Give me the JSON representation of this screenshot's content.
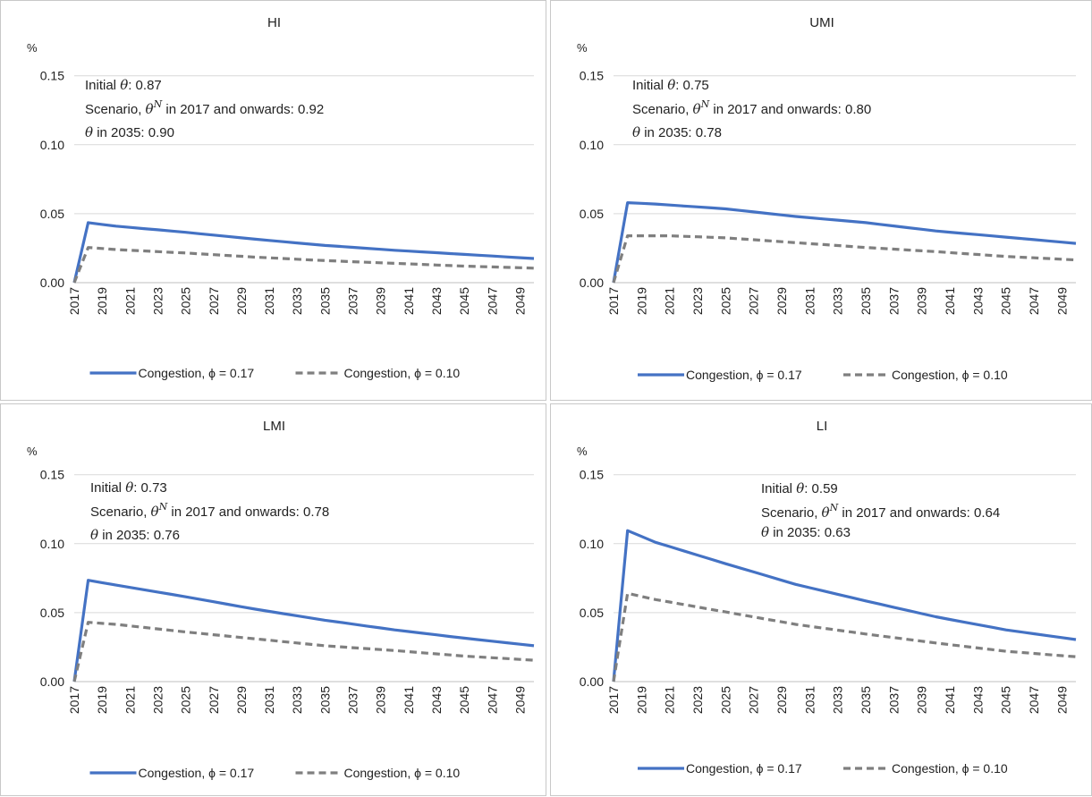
{
  "colors": {
    "series1": "#4472c4",
    "series2": "#7f7f7f",
    "grid": "#d9d9d9",
    "axis": "#bfbfbf"
  },
  "chart_data": [
    {
      "type": "line",
      "title": "HI",
      "unit": "%",
      "ylim": [
        0,
        0.15
      ],
      "yticks": [
        "0.00",
        "0.05",
        "0.10",
        "0.15"
      ],
      "x_start": 2017,
      "x_end": 2050,
      "xticks": [
        "2017",
        "2019",
        "2021",
        "2023",
        "2025",
        "2027",
        "2029",
        "2031",
        "2033",
        "2035",
        "2037",
        "2039",
        "2041",
        "2043",
        "2045",
        "2047",
        "2049"
      ],
      "annotation": {
        "line1_prefix": "Initial ",
        "line1_sym": "θ",
        "line1_value": ": 0.87",
        "line2_prefix": "Scenario, ",
        "line2_sym": "θ",
        "line2_sup": "N",
        "line2_rest": " in 2017 and onwards: 0.92",
        "line3_sym": "θ",
        "line3_rest": " in 2035: 0.90"
      },
      "series": [
        {
          "name": "Congestion, ϕ = 0.17",
          "anchors": [
            [
              2017,
              0
            ],
            [
              2018,
              0.0435
            ],
            [
              2020,
              0.041
            ],
            [
              2025,
              0.0365
            ],
            [
              2030,
              0.0315
            ],
            [
              2035,
              0.027
            ],
            [
              2040,
              0.0235
            ],
            [
              2045,
              0.0205
            ],
            [
              2050,
              0.0175
            ]
          ]
        },
        {
          "name": "Congestion, ϕ = 0.10",
          "anchors": [
            [
              2017,
              0
            ],
            [
              2018,
              0.0255
            ],
            [
              2020,
              0.024
            ],
            [
              2025,
              0.0215
            ],
            [
              2030,
              0.0185
            ],
            [
              2035,
              0.016
            ],
            [
              2040,
              0.014
            ],
            [
              2045,
              0.012
            ],
            [
              2050,
              0.0105
            ]
          ]
        }
      ]
    },
    {
      "type": "line",
      "title": "UMI",
      "unit": "%",
      "ylim": [
        0,
        0.15
      ],
      "yticks": [
        "0.00",
        "0.05",
        "0.10",
        "0.15"
      ],
      "x_start": 2017,
      "x_end": 2050,
      "xticks": [
        "2017",
        "2019",
        "2021",
        "2023",
        "2025",
        "2027",
        "2029",
        "2031",
        "2033",
        "2035",
        "2037",
        "2039",
        "2041",
        "2043",
        "2045",
        "2047",
        "2049"
      ],
      "annotation": {
        "line1_prefix": "Initial ",
        "line1_sym": "θ",
        "line1_value": ": 0.75",
        "line2_prefix": "Scenario, ",
        "line2_sym": "θ",
        "line2_sup": "N",
        "line2_rest": " in 2017 and onwards: 0.80",
        "line3_sym": "θ",
        "line3_rest": " in 2035: 0.78"
      },
      "series": [
        {
          "name": "Congestion, ϕ = 0.17",
          "anchors": [
            [
              2017,
              0
            ],
            [
              2018,
              0.058
            ],
            [
              2020,
              0.057
            ],
            [
              2025,
              0.0535
            ],
            [
              2030,
              0.048
            ],
            [
              2035,
              0.0435
            ],
            [
              2040,
              0.0375
            ],
            [
              2045,
              0.033
            ],
            [
              2050,
              0.0285
            ]
          ]
        },
        {
          "name": "Congestion, ϕ = 0.10",
          "anchors": [
            [
              2017,
              0
            ],
            [
              2018,
              0.034
            ],
            [
              2021,
              0.034
            ],
            [
              2025,
              0.0325
            ],
            [
              2030,
              0.029
            ],
            [
              2035,
              0.0255
            ],
            [
              2040,
              0.0225
            ],
            [
              2045,
              0.019
            ],
            [
              2050,
              0.0165
            ]
          ]
        }
      ]
    },
    {
      "type": "line",
      "title": "LMI",
      "unit": "%",
      "ylim": [
        0,
        0.15
      ],
      "yticks": [
        "0.00",
        "0.05",
        "0.10",
        "0.15"
      ],
      "x_start": 2017,
      "x_end": 2050,
      "xticks": [
        "2017",
        "2019",
        "2021",
        "2023",
        "2025",
        "2027",
        "2029",
        "2031",
        "2033",
        "2035",
        "2037",
        "2039",
        "2041",
        "2043",
        "2045",
        "2047",
        "2049"
      ],
      "annotation": {
        "line1_prefix": "Initial ",
        "line1_sym": "θ",
        "line1_value": ": 0.73",
        "line2_prefix": "Scenario, ",
        "line2_sym": "θ",
        "line2_sup": "N",
        "line2_rest": " in 2017 and onwards: 0.78",
        "line3_sym": "θ",
        "line3_rest": " in 2035: 0.76"
      },
      "series": [
        {
          "name": "Congestion, ϕ = 0.17",
          "anchors": [
            [
              2017,
              0
            ],
            [
              2018,
              0.0735
            ],
            [
              2020,
              0.07
            ],
            [
              2025,
              0.0615
            ],
            [
              2030,
              0.0525
            ],
            [
              2035,
              0.0445
            ],
            [
              2040,
              0.0375
            ],
            [
              2045,
              0.0315
            ],
            [
              2050,
              0.026
            ]
          ]
        },
        {
          "name": "Congestion, ϕ = 0.10",
          "anchors": [
            [
              2017,
              0
            ],
            [
              2018,
              0.043
            ],
            [
              2020,
              0.0415
            ],
            [
              2025,
              0.036
            ],
            [
              2030,
              0.031
            ],
            [
              2035,
              0.026
            ],
            [
              2040,
              0.0225
            ],
            [
              2045,
              0.0185
            ],
            [
              2050,
              0.0155
            ]
          ]
        }
      ]
    },
    {
      "type": "line",
      "title": "LI",
      "unit": "%",
      "ylim": [
        0,
        0.15
      ],
      "yticks": [
        "0.00",
        "0.05",
        "0.10",
        "0.15"
      ],
      "x_start": 2017,
      "x_end": 2050,
      "xticks": [
        "2017",
        "2019",
        "2021",
        "2023",
        "2025",
        "2027",
        "2029",
        "2031",
        "2033",
        "2035",
        "2037",
        "2039",
        "2041",
        "2043",
        "2045",
        "2047",
        "2049"
      ],
      "annotation": {
        "line1_prefix": "Initial ",
        "line1_sym": "θ",
        "line1_value": ": 0.59",
        "line2_prefix": "Scenario, ",
        "line2_sym": "θ",
        "line2_sup": "N",
        "line2_rest": " in 2017 and onwards: 0.64",
        "line3_sym": "θ",
        "line3_rest": " in 2035: 0.63"
      },
      "series": [
        {
          "name": "Congestion, ϕ = 0.17",
          "anchors": [
            [
              2017,
              0
            ],
            [
              2018,
              0.1095
            ],
            [
              2020,
              0.101
            ],
            [
              2025,
              0.0855
            ],
            [
              2030,
              0.0705
            ],
            [
              2035,
              0.0585
            ],
            [
              2040,
              0.047
            ],
            [
              2045,
              0.0375
            ],
            [
              2050,
              0.0305
            ]
          ]
        },
        {
          "name": "Congestion, ϕ = 0.10",
          "anchors": [
            [
              2017,
              0
            ],
            [
              2018,
              0.064
            ],
            [
              2020,
              0.0595
            ],
            [
              2025,
              0.0505
            ],
            [
              2030,
              0.0415
            ],
            [
              2035,
              0.0345
            ],
            [
              2040,
              0.028
            ],
            [
              2045,
              0.022
            ],
            [
              2050,
              0.018
            ]
          ]
        }
      ]
    }
  ]
}
